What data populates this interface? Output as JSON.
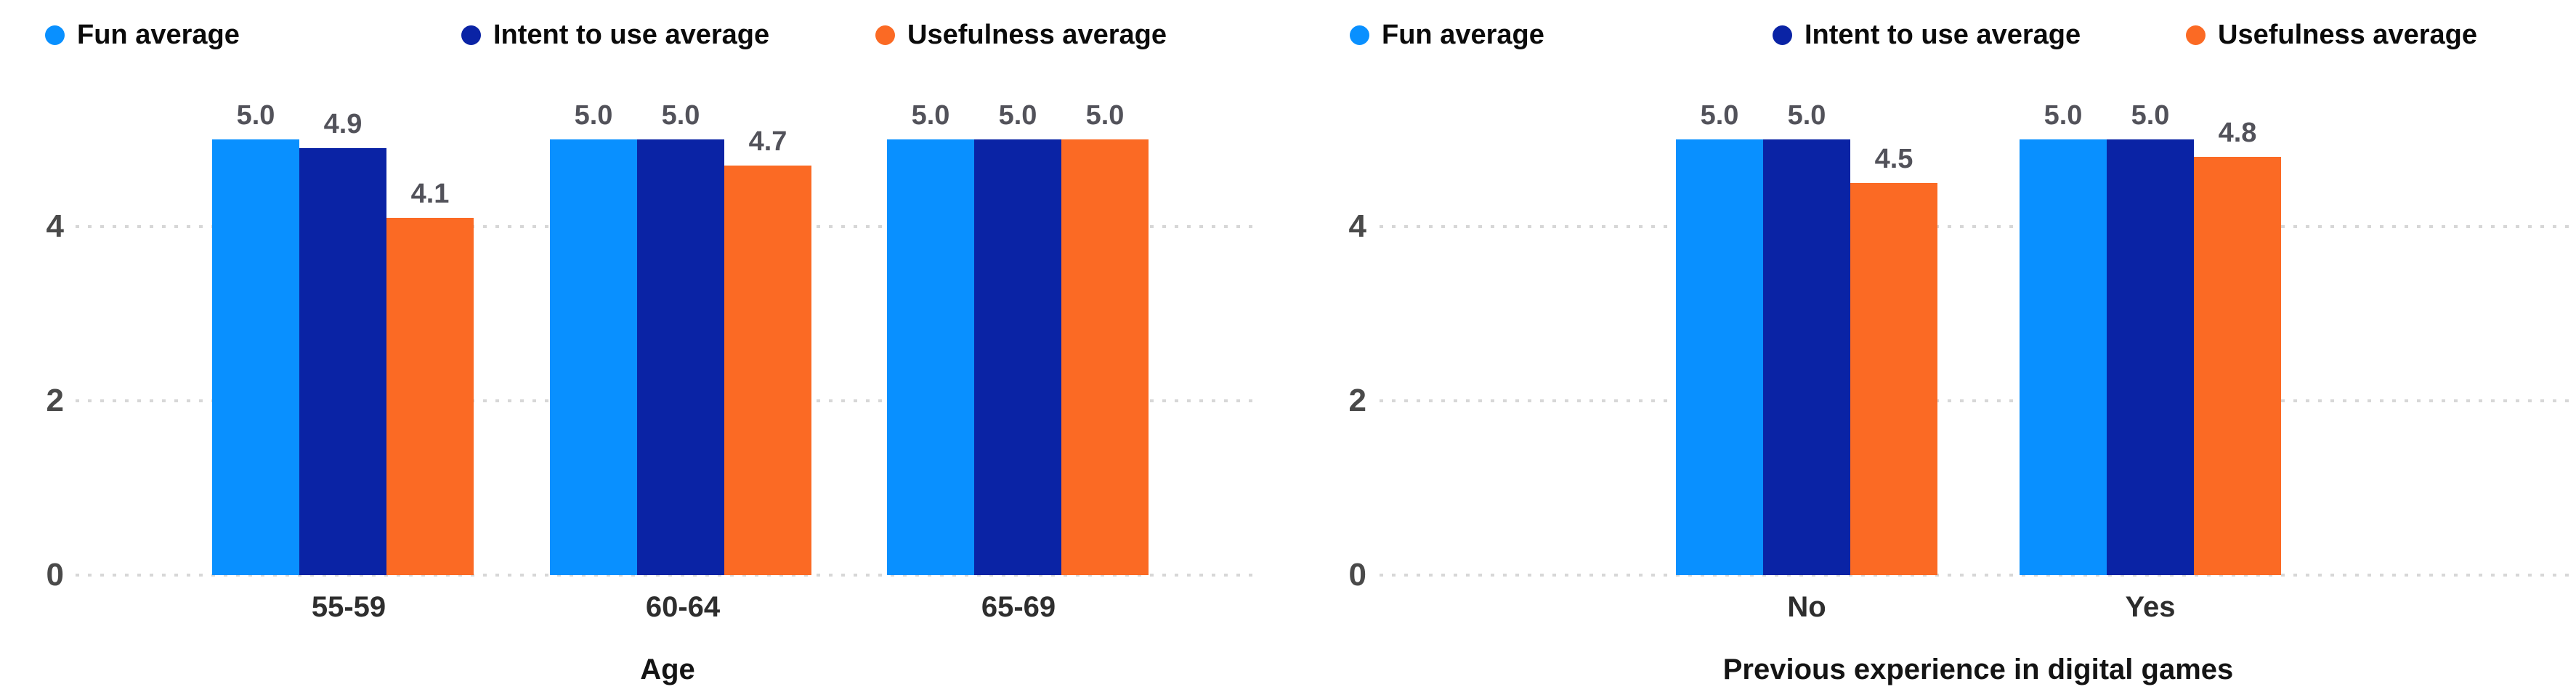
{
  "page": {
    "background": "#ffffff"
  },
  "colors": {
    "fun": "#0990FF",
    "intent": "#0A23A5",
    "usefulness": "#FB6A24",
    "gridline": "#D7D7D7",
    "axis_tick_text": "#4A4A4A",
    "data_label_text": "#52525A",
    "category_text": "#2E2E2E",
    "legend_text": "#0B0B0B"
  },
  "chart_data": [
    {
      "type": "bar",
      "title": "",
      "categories": [
        "55-59",
        "60-64",
        "65-69"
      ],
      "series": [
        {
          "name": "Fun average",
          "color": "#0990FF",
          "values": [
            5.0,
            5.0,
            5.0
          ],
          "labels": [
            "5.0",
            "5.0",
            "5.0"
          ]
        },
        {
          "name": "Intent to use average",
          "color": "#0A23A5",
          "values": [
            4.9,
            5.0,
            5.0
          ],
          "labels": [
            "4.9",
            "5.0",
            "5.0"
          ]
        },
        {
          "name": "Usefulness average",
          "color": "#FB6A24",
          "values": [
            4.1,
            4.7,
            5.0
          ],
          "labels": [
            "4.1",
            "4.7",
            "5.0"
          ]
        }
      ],
      "xlabel": "Age",
      "ylabel": "",
      "yticks": [
        0,
        2,
        4
      ],
      "ylim": [
        0,
        5
      ],
      "grid": "dotted-horizontal",
      "legend_position": "top",
      "data_labels": "one-decimal"
    },
    {
      "type": "bar",
      "title": "",
      "categories": [
        "No",
        "Yes"
      ],
      "series": [
        {
          "name": "Fun average",
          "color": "#0990FF",
          "values": [
            5.0,
            5.0
          ],
          "labels": [
            "5.0",
            "5.0"
          ]
        },
        {
          "name": "Intent to use average",
          "color": "#0A23A5",
          "values": [
            5.0,
            5.0
          ],
          "labels": [
            "5.0",
            "5.0"
          ]
        },
        {
          "name": "Usefulness average",
          "color": "#FB6A24",
          "values": [
            4.5,
            4.8
          ],
          "labels": [
            "4.5",
            "4.8"
          ]
        }
      ],
      "xlabel": "Previous experience in digital games",
      "ylabel": "",
      "yticks": [
        0,
        2,
        4
      ],
      "ylim": [
        0,
        5
      ],
      "grid": "dotted-horizontal",
      "legend_position": "top",
      "data_labels": "one-decimal"
    }
  ]
}
